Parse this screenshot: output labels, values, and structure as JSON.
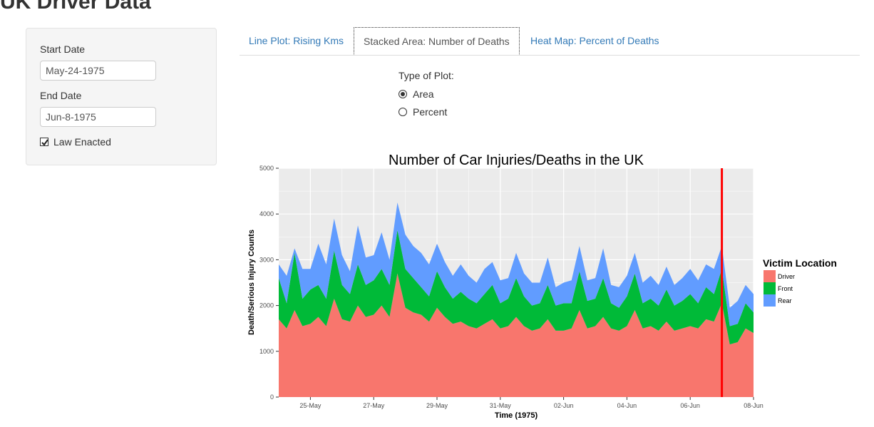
{
  "app": {
    "title": "UK Driver Data"
  },
  "sidebar": {
    "start_date_label": "Start Date",
    "start_date_value": "May-24-1975",
    "end_date_label": "End Date",
    "end_date_value": "Jun-8-1975",
    "law_enacted_label": "Law Enacted",
    "law_enacted_checked": true
  },
  "tabs": [
    {
      "label": "Line Plot: Rising Kms",
      "active": false
    },
    {
      "label": "Stacked Area: Number of Deaths",
      "active": true
    },
    {
      "label": "Heat Map: Percent of Deaths",
      "active": false
    }
  ],
  "plot_type": {
    "label": "Type of Plot:",
    "options": [
      {
        "label": "Area",
        "selected": true
      },
      {
        "label": "Percent",
        "selected": false
      }
    ]
  },
  "colors": {
    "driver": "#F8766D",
    "front": "#00BA38",
    "rear": "#619CFF",
    "law_line": "#FF0000",
    "panel_bg": "#EBEBEB",
    "link": "#337ab7"
  },
  "chart_data": {
    "type": "area",
    "stacked": true,
    "title": "Number of Car Injuries/Deaths in the UK",
    "xlabel": "Time (1975)",
    "ylabel": "Death/Serious Injury Counts",
    "ylim": [
      0,
      5000
    ],
    "y_ticks": [
      "0",
      "1000",
      "2000",
      "3000",
      "4000",
      "5000"
    ],
    "x_range": [
      "May-24",
      "Jun-08"
    ],
    "x_ticks": [
      "25-May",
      "27-May",
      "29-May",
      "31-May",
      "02-Jun",
      "04-Jun",
      "06-Jun",
      "08-Jun"
    ],
    "x_tick_day_offsets": [
      1,
      3,
      5,
      7,
      9,
      11,
      13,
      15
    ],
    "x_span_days": 15,
    "legend_title": "Victim Location",
    "legend_position": "right",
    "law_line_day_offset": 14.0,
    "day_offsets": [
      0,
      0.25,
      0.5,
      0.75,
      1,
      1.25,
      1.5,
      1.75,
      2,
      2.25,
      2.5,
      2.75,
      3,
      3.25,
      3.5,
      3.75,
      4,
      4.25,
      4.5,
      4.75,
      5,
      5.25,
      5.5,
      5.75,
      6,
      6.25,
      6.5,
      6.75,
      7,
      7.25,
      7.5,
      7.75,
      8,
      8.25,
      8.5,
      8.75,
      9,
      9.25,
      9.5,
      9.75,
      10,
      10.25,
      10.5,
      10.75,
      11,
      11.25,
      11.5,
      11.75,
      12,
      12.25,
      12.5,
      12.75,
      13,
      13.25,
      13.5,
      13.75,
      14,
      14.25,
      14.5,
      14.75,
      15
    ],
    "series": [
      {
        "name": "Driver",
        "values": [
          1700,
          1500,
          1900,
          1550,
          1600,
          1750,
          1550,
          2150,
          1700,
          1650,
          2000,
          1750,
          1800,
          2000,
          1750,
          2700,
          1950,
          1850,
          1800,
          1650,
          1950,
          1750,
          1600,
          1650,
          1550,
          1500,
          1600,
          1700,
          1500,
          1550,
          1750,
          1550,
          1450,
          1500,
          1700,
          1450,
          1450,
          1500,
          1900,
          1500,
          1550,
          1750,
          1500,
          1450,
          1550,
          1900,
          1500,
          1550,
          1450,
          1650,
          1450,
          1500,
          1550,
          1500,
          1700,
          1650,
          2050,
          1150,
          1200,
          1500,
          1400
        ]
      },
      {
        "name": "Front",
        "values": [
          900,
          550,
          1250,
          600,
          750,
          700,
          600,
          1050,
          750,
          600,
          900,
          700,
          750,
          800,
          700,
          950,
          850,
          750,
          600,
          550,
          800,
          650,
          550,
          650,
          600,
          550,
          650,
          750,
          550,
          600,
          850,
          650,
          550,
          550,
          750,
          550,
          600,
          550,
          850,
          600,
          600,
          850,
          550,
          500,
          650,
          800,
          550,
          600,
          550,
          700,
          550,
          600,
          700,
          550,
          700,
          600,
          750,
          400,
          400,
          550,
          450
        ]
      },
      {
        "name": "Rear",
        "values": [
          300,
          600,
          100,
          650,
          450,
          900,
          750,
          700,
          650,
          500,
          850,
          600,
          550,
          800,
          550,
          600,
          750,
          700,
          750,
          700,
          600,
          550,
          500,
          600,
          500,
          450,
          550,
          500,
          500,
          450,
          550,
          500,
          500,
          450,
          600,
          400,
          450,
          500,
          550,
          450,
          450,
          650,
          400,
          450,
          450,
          450,
          450,
          500,
          450,
          500,
          450,
          500,
          550,
          500,
          500,
          550,
          500,
          400,
          500,
          400,
          400
        ]
      }
    ]
  }
}
